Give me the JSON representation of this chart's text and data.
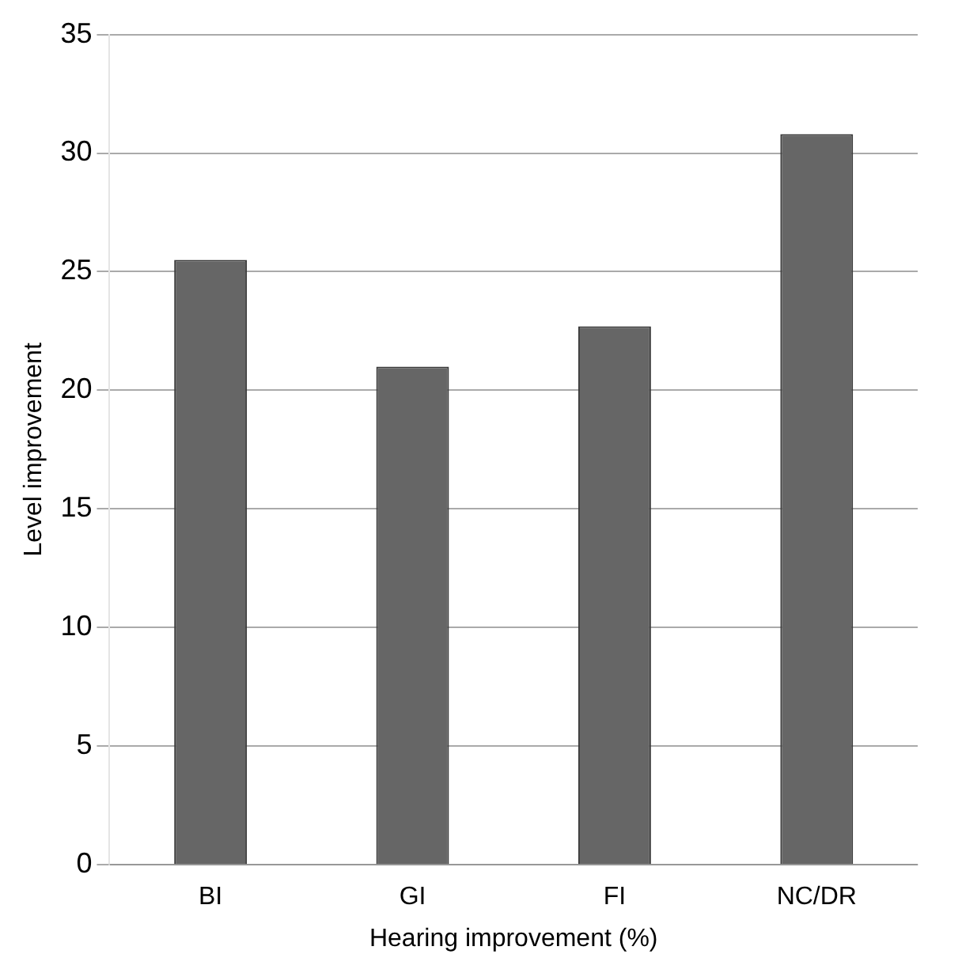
{
  "chart_data": {
    "type": "bar",
    "xlabel": "Hearing improvement (%)",
    "ylabel": "Level improvement",
    "categories": [
      "BI",
      "GI",
      "FI",
      "NC/DR"
    ],
    "values": [
      25.5,
      21,
      22.7,
      30.8
    ],
    "color": "#666666",
    "ylim": [
      0,
      35
    ],
    "yticks": [
      0,
      5,
      10,
      15,
      20,
      25,
      30,
      35
    ],
    "grid": "y"
  }
}
